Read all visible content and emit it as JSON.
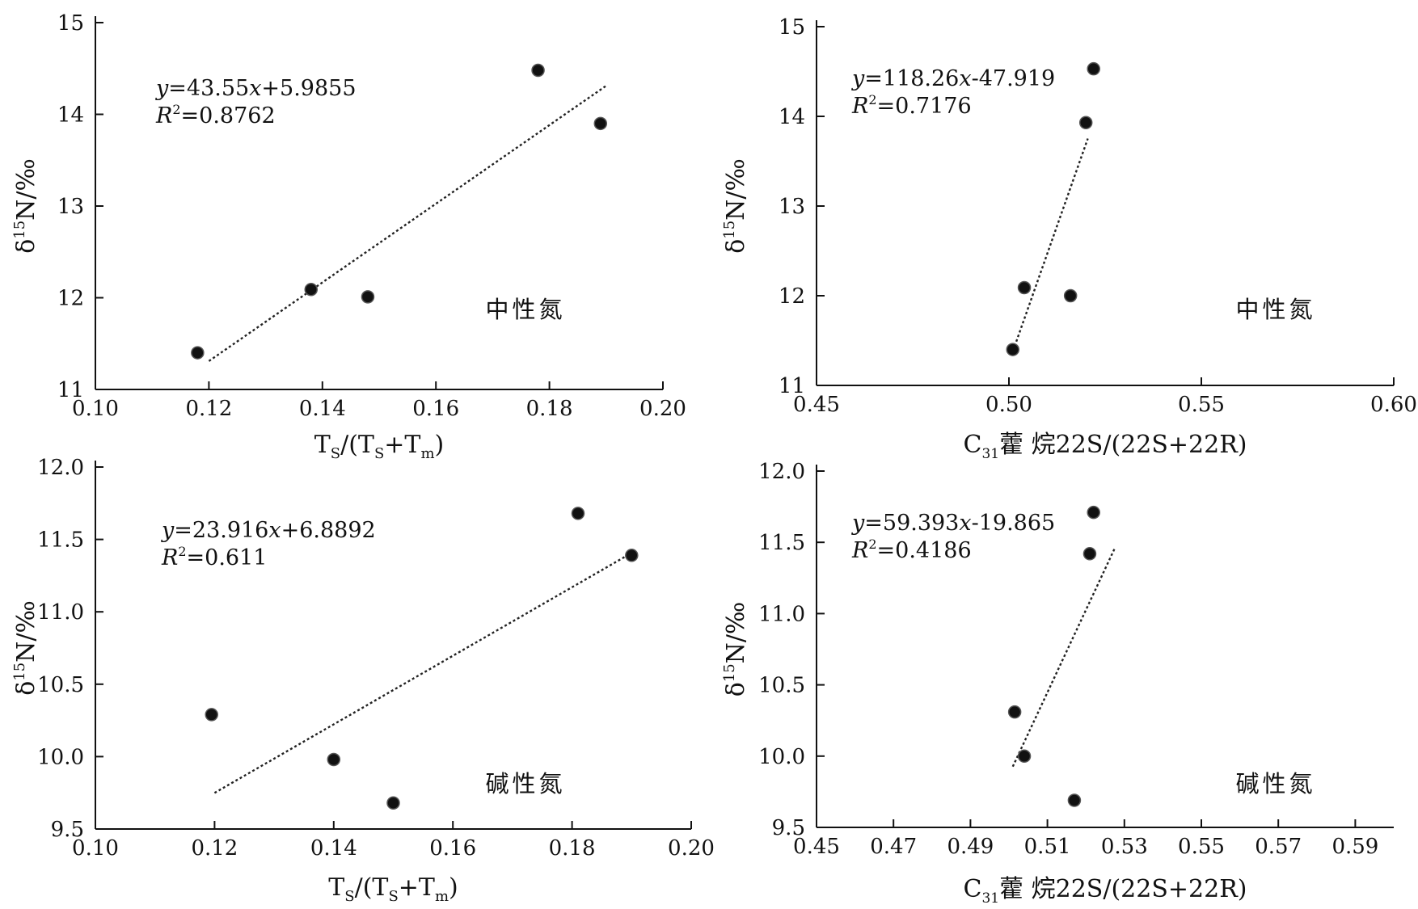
{
  "chart_data": [
    {
      "type": "scatter",
      "panel": "top-left",
      "category_label": "中性氮",
      "xlabel": "Ts/(Ts+Tm)",
      "ylabel": "δ15N/‰",
      "xlim": [
        0.1,
        0.2
      ],
      "ylim": [
        11,
        15
      ],
      "xticks": [
        "0.10",
        "0.12",
        "0.14",
        "0.16",
        "0.18",
        "0.20"
      ],
      "yticks": [
        "11",
        "12",
        "13",
        "14",
        "15"
      ],
      "equation": "y=43.55x+5.9855",
      "r2": "R2=0.8762",
      "points": [
        {
          "x": 0.118,
          "y": 11.4
        },
        {
          "x": 0.138,
          "y": 12.09
        },
        {
          "x": 0.148,
          "y": 12.01
        },
        {
          "x": 0.178,
          "y": 14.48
        },
        {
          "x": 0.189,
          "y": 13.9
        }
      ],
      "trendline": {
        "x0": 0.12,
        "x1": 0.19
      }
    },
    {
      "type": "scatter",
      "panel": "top-right",
      "category_label": "中性氮",
      "xlabel": "C31藿烷22S/(22S+22R)",
      "ylabel": "δ15N/‰",
      "xlim": [
        0.45,
        0.6
      ],
      "ylim": [
        11,
        15
      ],
      "xticks": [
        "0.45",
        "0.50",
        "0.55",
        "0.60"
      ],
      "yticks": [
        "11",
        "12",
        "13",
        "14",
        "15"
      ],
      "equation": "y=118.26x-47.919",
      "r2": "R2=0.7176",
      "points": [
        {
          "x": 0.501,
          "y": 11.4
        },
        {
          "x": 0.504,
          "y": 12.09
        },
        {
          "x": 0.516,
          "y": 12.0
        },
        {
          "x": 0.52,
          "y": 13.93
        },
        {
          "x": 0.522,
          "y": 14.53
        }
      ],
      "trendline": {
        "x0": 0.5015,
        "x1": 0.5205
      }
    },
    {
      "type": "scatter",
      "panel": "bottom-left",
      "category_label": "碱性氮",
      "xlabel": "Ts/(Ts+Tm)",
      "ylabel": "δ15N/‰",
      "xlim": [
        0.1,
        0.2
      ],
      "ylim": [
        9.5,
        12.0
      ],
      "xticks": [
        "0.10",
        "0.12",
        "0.14",
        "0.16",
        "0.18",
        "0.20"
      ],
      "yticks": [
        "9.5",
        "10.0",
        "10.5",
        "11.0",
        "11.5",
        "12.0"
      ],
      "equation": "y=23.916x+6.8892",
      "r2": "R2=0.611",
      "points": [
        {
          "x": 0.1195,
          "y": 10.29
        },
        {
          "x": 0.14,
          "y": 9.98
        },
        {
          "x": 0.15,
          "y": 9.68
        },
        {
          "x": 0.181,
          "y": 11.68
        },
        {
          "x": 0.19,
          "y": 11.39
        }
      ],
      "trendline": {
        "x0": 0.12,
        "x1": 0.19
      }
    },
    {
      "type": "scatter",
      "panel": "bottom-right",
      "category_label": "碱性氮",
      "xlabel": "C31藿烷22S/(22S+22R)",
      "ylabel": "δ15N/‰",
      "xlim": [
        0.45,
        0.6
      ],
      "ylim": [
        9.5,
        12.0
      ],
      "xticks": [
        "0.45",
        "0.47",
        "0.49",
        "0.51",
        "0.53",
        "0.55",
        "0.57",
        "0.59"
      ],
      "yticks": [
        "9.5",
        "10.0",
        "10.5",
        "11.0",
        "11.5",
        "12.0"
      ],
      "equation": "y=59.393x-19.865",
      "r2": "R2=0.4186",
      "points": [
        {
          "x": 0.5015,
          "y": 10.31
        },
        {
          "x": 0.504,
          "y": 10.0
        },
        {
          "x": 0.517,
          "y": 9.69
        },
        {
          "x": 0.521,
          "y": 11.42
        },
        {
          "x": 0.522,
          "y": 11.71
        }
      ],
      "trendline": {
        "x0": 0.501,
        "x1": 0.5275
      }
    }
  ]
}
